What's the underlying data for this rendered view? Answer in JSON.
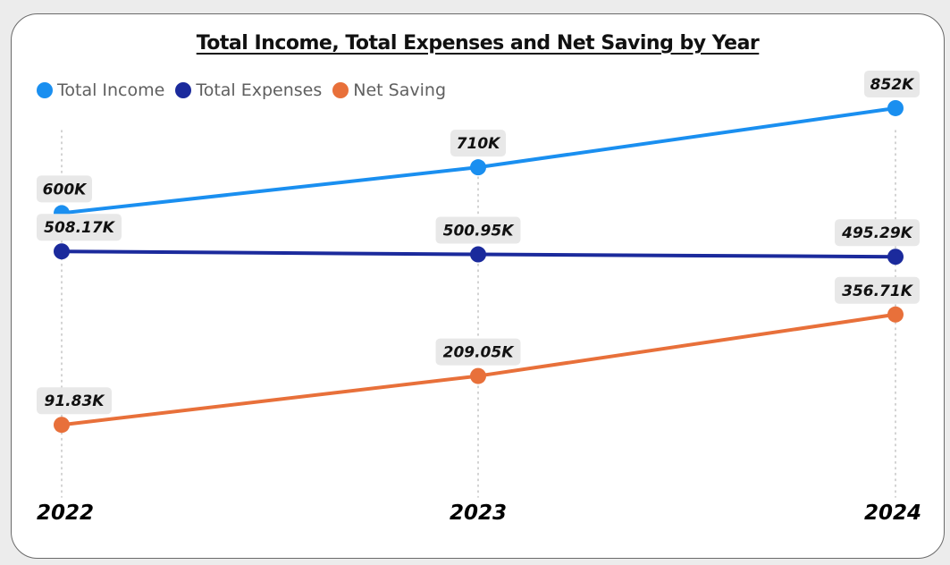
{
  "chart_data": {
    "type": "line",
    "title": "Total Income, Total Expenses and Net Saving by Year",
    "categories": [
      "2022",
      "2023",
      "2024"
    ],
    "legend_position": "top-left",
    "grid": "vertical dotted",
    "series": [
      {
        "name": "Total Income",
        "color": "#1a8ff0",
        "values": [
          600000,
          710000,
          852000
        ],
        "labels": [
          "600K",
          "710K",
          "852K"
        ]
      },
      {
        "name": "Total Expenses",
        "color": "#1b2a9c",
        "values": [
          508170,
          500950,
          495290
        ],
        "labels": [
          "508.17K",
          "500.95K",
          "495.29K"
        ]
      },
      {
        "name": "Net Saving",
        "color": "#e8703a",
        "values": [
          91830,
          209050,
          356710
        ],
        "labels": [
          "91.83K",
          "209.05K",
          "356.71K"
        ]
      }
    ]
  }
}
